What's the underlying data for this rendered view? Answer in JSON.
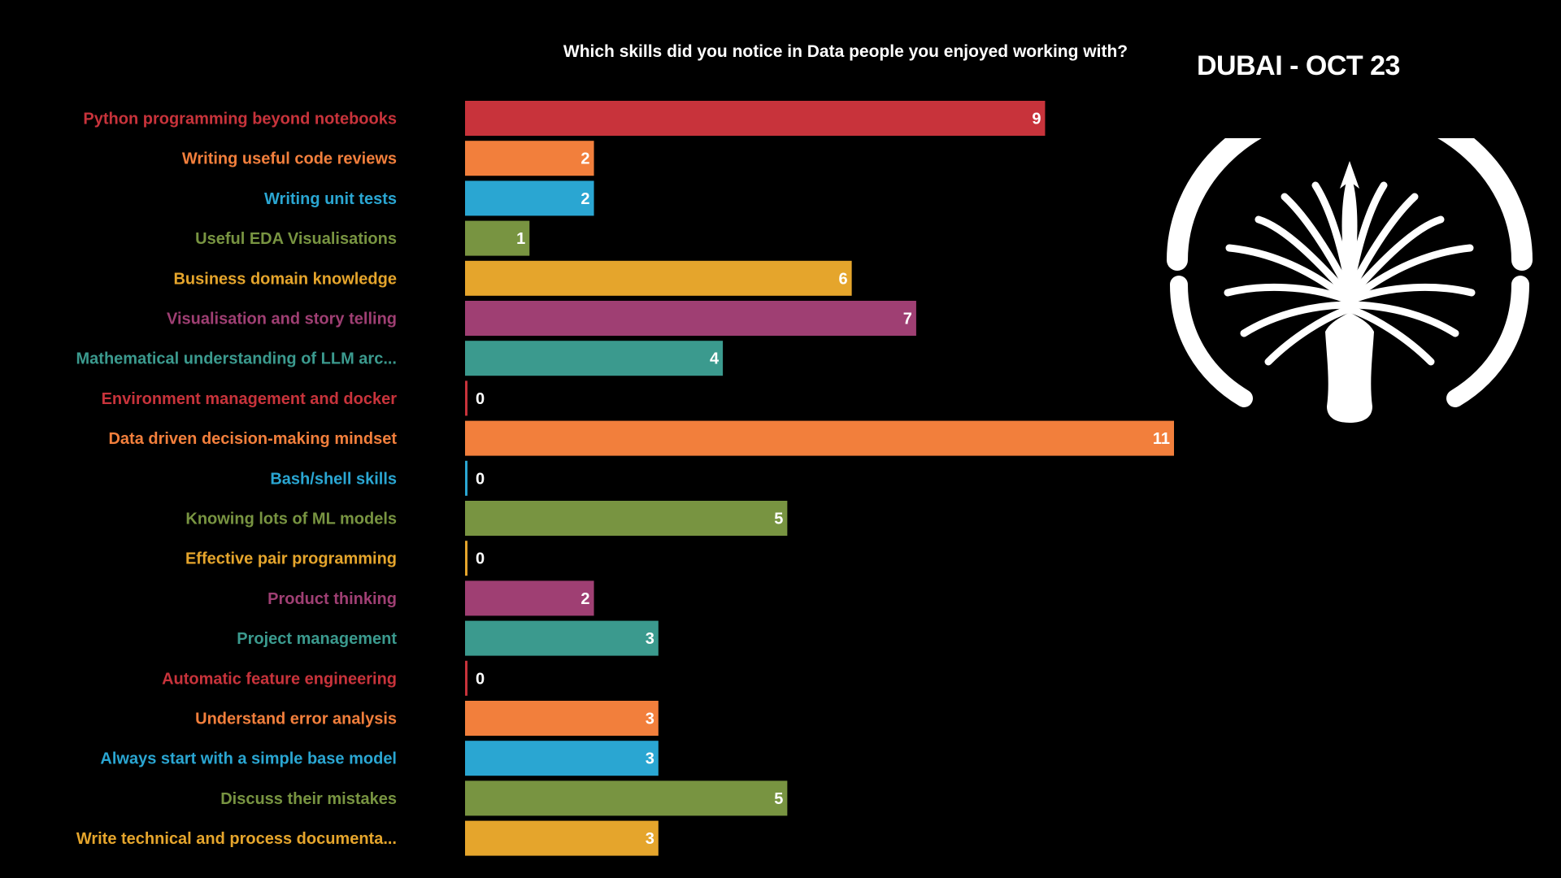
{
  "event_label": "DUBAI - OCT 23",
  "chart_data": {
    "type": "bar",
    "orientation": "horizontal",
    "title": "Which skills did you notice in Data people you enjoyed working with?",
    "xlabel": "",
    "ylabel": "",
    "xlim": [
      0,
      11
    ],
    "grid": false,
    "categories": [
      "Python programming beyond notebooks",
      "Writing useful code reviews",
      "Writing unit tests",
      "Useful EDA Visualisations",
      "Business domain knowledge",
      "Visualisation and story telling",
      "Mathematical understanding of LLM arc...",
      "Environment management and docker",
      "Data driven decision-making mindset",
      "Bash/shell skills",
      "Knowing lots of ML models",
      "Effective pair programming",
      "Product thinking",
      "Project management",
      "Automatic feature engineering",
      "Understand error analysis",
      "Always start with a simple base model",
      "Discuss their mistakes",
      "Write technical and process documenta..."
    ],
    "values": [
      9,
      2,
      2,
      1,
      6,
      7,
      4,
      0,
      11,
      0,
      5,
      0,
      2,
      3,
      0,
      3,
      3,
      5,
      3
    ],
    "colors": [
      "#c8333b",
      "#f27f3c",
      "#2aa6d2",
      "#789441",
      "#e5a52c",
      "#9f3f73",
      "#3b9a8e"
    ]
  },
  "logo": {
    "icon": "palm-jumeirah-icon",
    "color": "#ffffff"
  }
}
